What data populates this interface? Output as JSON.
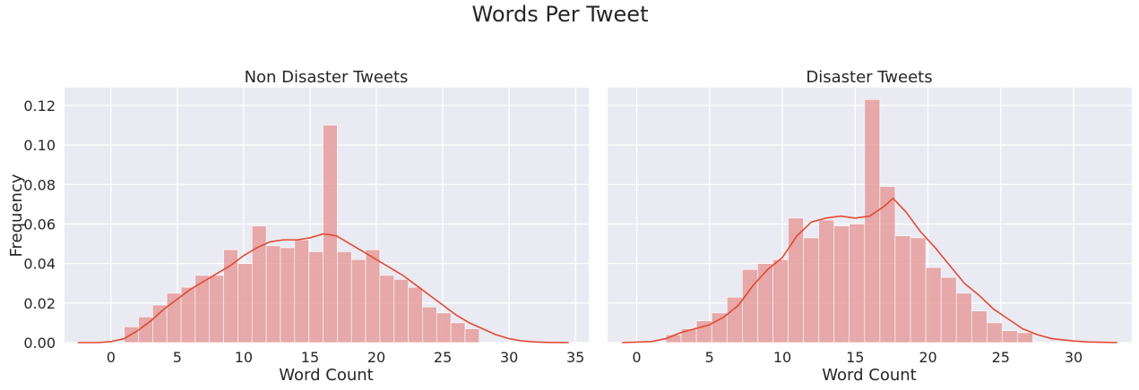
{
  "figure": {
    "title": "Words Per Tweet"
  },
  "chart_data": [
    {
      "type": "bar",
      "title": "Non Disaster Tweets",
      "xlabel": "Word Count",
      "ylabel": "Frequency",
      "xlim": [
        -3.5,
        36
      ],
      "ylim": [
        0,
        0.129
      ],
      "xticks": [
        "0",
        "5",
        "10",
        "15",
        "20",
        "25",
        "30",
        "35"
      ],
      "xtick_values": [
        0,
        5,
        10,
        15,
        20,
        25,
        30,
        35
      ],
      "yticks": [
        "0.00",
        "0.02",
        "0.04",
        "0.06",
        "0.08",
        "0.10",
        "0.12"
      ],
      "ytick_values": [
        0,
        0.02,
        0.04,
        0.06,
        0.08,
        0.1,
        0.12
      ],
      "bin_start": 1,
      "bin_width": 1.07,
      "values": [
        0.008,
        0.013,
        0.019,
        0.025,
        0.028,
        0.034,
        0.034,
        0.047,
        0.04,
        0.059,
        0.049,
        0.048,
        0.052,
        0.046,
        0.11,
        0.046,
        0.042,
        0.047,
        0.034,
        0.032,
        0.028,
        0.018,
        0.015,
        0.01,
        0.007
      ],
      "kde": {
        "x": [
          -2.5,
          -1,
          0,
          1,
          2,
          3,
          4,
          5,
          6,
          7,
          8,
          9,
          10,
          11,
          12,
          13,
          14,
          15,
          16,
          17,
          18,
          19,
          20,
          21,
          22,
          23,
          24,
          25,
          26,
          27,
          28,
          29,
          30,
          31,
          32,
          33,
          34.5
        ],
        "y": [
          0.0,
          0.0,
          0.0005,
          0.002,
          0.006,
          0.011,
          0.017,
          0.022,
          0.027,
          0.031,
          0.035,
          0.039,
          0.044,
          0.048,
          0.051,
          0.052,
          0.052,
          0.053,
          0.055,
          0.054,
          0.05,
          0.046,
          0.042,
          0.038,
          0.034,
          0.029,
          0.024,
          0.019,
          0.014,
          0.01,
          0.007,
          0.004,
          0.002,
          0.0008,
          0.0003,
          0.0001,
          0.0
        ]
      },
      "bar_color": "#e48f8a",
      "line_color": "#e24a33",
      "background": "#eaeaf2"
    },
    {
      "type": "bar",
      "title": "Disaster Tweets",
      "xlabel": "Word Count",
      "xlim": [
        -2,
        34
      ],
      "ylim": [
        0,
        0.129
      ],
      "xticks": [
        "0",
        "5",
        "10",
        "15",
        "20",
        "25",
        "30"
      ],
      "xtick_values": [
        0,
        5,
        10,
        15,
        20,
        25,
        30
      ],
      "bin_start": 2,
      "bin_width": 1.05,
      "values": [
        0.004,
        0.007,
        0.011,
        0.015,
        0.023,
        0.037,
        0.04,
        0.042,
        0.063,
        0.053,
        0.062,
        0.059,
        0.06,
        0.123,
        0.079,
        0.054,
        0.053,
        0.038,
        0.033,
        0.025,
        0.016,
        0.01,
        0.006,
        0.005
      ],
      "kde": {
        "x": [
          -1,
          1,
          2,
          3,
          4,
          5,
          6,
          7,
          8,
          9,
          10,
          11,
          12,
          13,
          14,
          15,
          16,
          17,
          17.6,
          18.5,
          19.5,
          20.5,
          21.5,
          22.5,
          23.5,
          24.5,
          25.5,
          26.5,
          27.5,
          28.5,
          30,
          31,
          33
        ],
        "y": [
          0.0,
          0.0005,
          0.002,
          0.005,
          0.007,
          0.009,
          0.013,
          0.019,
          0.029,
          0.037,
          0.043,
          0.054,
          0.061,
          0.063,
          0.064,
          0.063,
          0.064,
          0.069,
          0.073,
          0.066,
          0.056,
          0.048,
          0.039,
          0.03,
          0.024,
          0.017,
          0.012,
          0.007,
          0.004,
          0.002,
          0.0008,
          0.0003,
          0.0
        ]
      },
      "bar_color": "#e48f8a",
      "line_color": "#e24a33",
      "background": "#eaeaf2"
    }
  ]
}
